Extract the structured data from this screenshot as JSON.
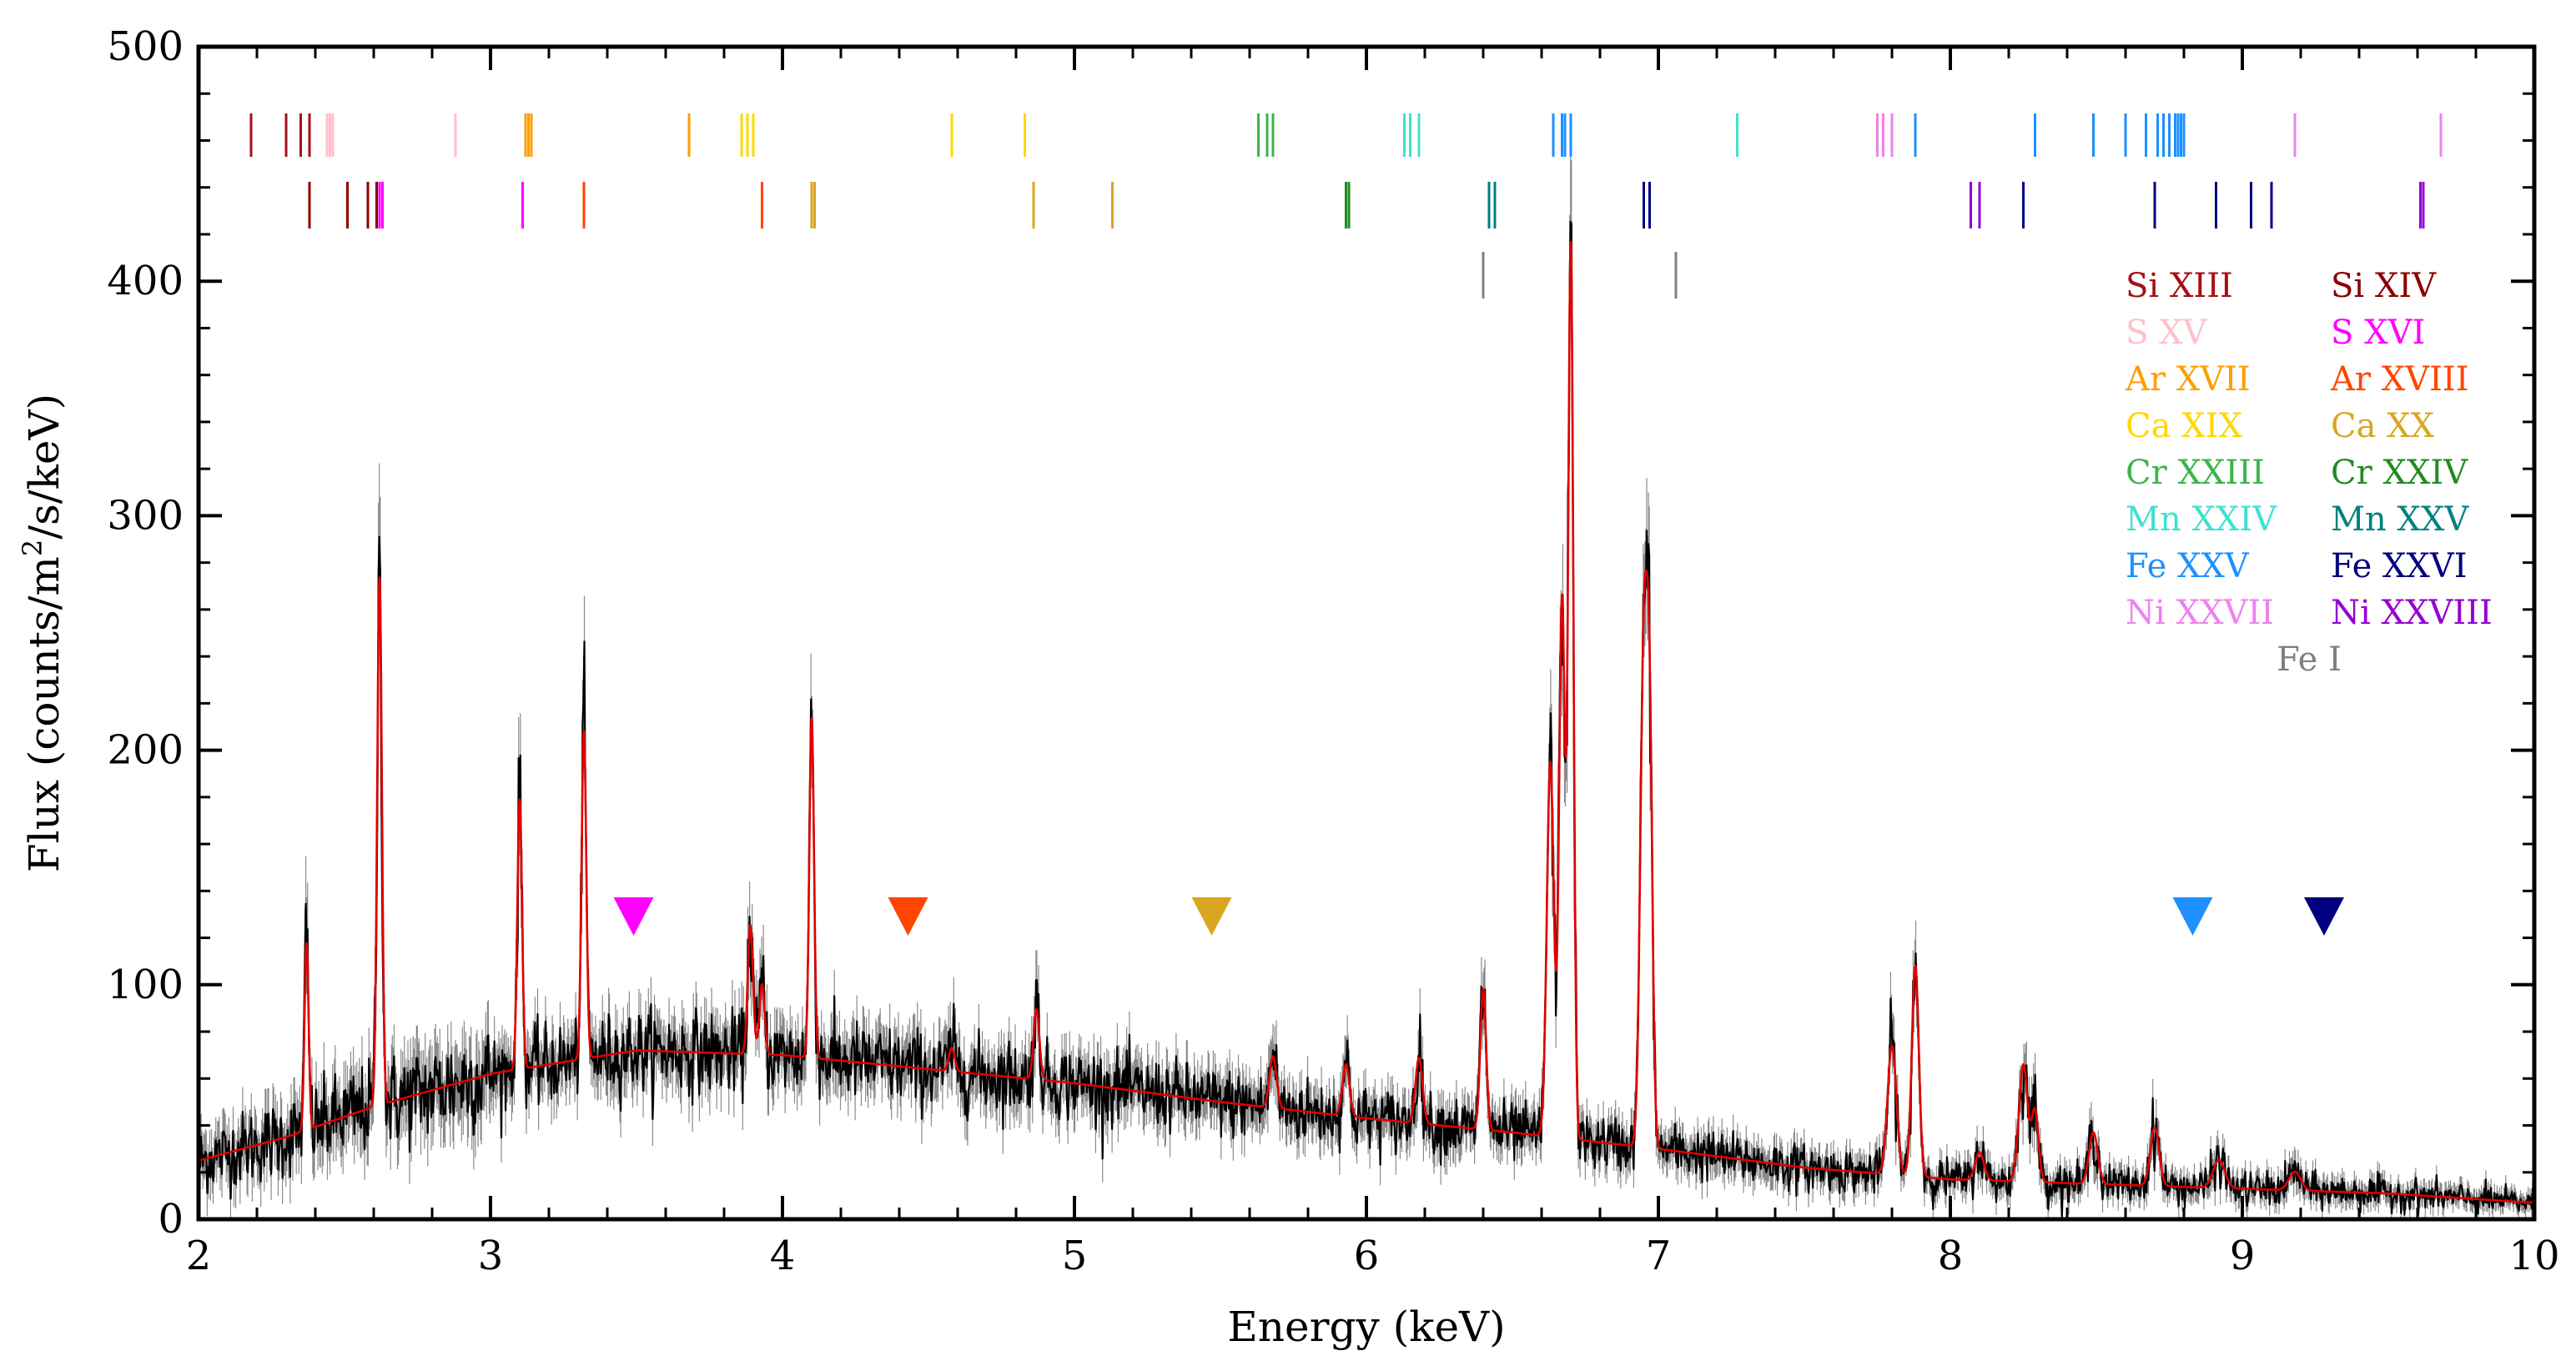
{
  "chart_data": {
    "type": "line",
    "title": "",
    "xlabel": "Energy (keV)",
    "ylabel_prefix": "Flux (counts/m",
    "ylabel_sup": "2",
    "ylabel_suffix": "/s/keV)",
    "xlim": [
      2,
      10
    ],
    "ylim": [
      0,
      500
    ],
    "xticks": [
      2,
      3,
      4,
      5,
      6,
      7,
      8,
      9,
      10
    ],
    "yticks": [
      0,
      100,
      200,
      300,
      400,
      500
    ],
    "grid": false,
    "continuum": {
      "x": [
        2.0,
        2.3,
        2.6,
        3.0,
        3.5,
        4.0,
        4.5,
        5.0,
        5.5,
        6.0,
        6.5,
        7.0,
        7.5,
        8.0,
        8.5,
        9.0,
        9.5,
        10.0
      ],
      "y": [
        25,
        35,
        48,
        62,
        72,
        70,
        64,
        58,
        50,
        43,
        37,
        30,
        22,
        17,
        15,
        13,
        11,
        7
      ]
    },
    "lines": [
      {
        "e": 2.37,
        "amp": 80,
        "w": 0.007
      },
      {
        "e": 2.62,
        "amp": 225,
        "w": 0.008
      },
      {
        "e": 3.1,
        "amp": 115,
        "w": 0.008
      },
      {
        "e": 3.32,
        "amp": 140,
        "w": 0.008
      },
      {
        "e": 3.89,
        "amp": 55,
        "w": 0.009
      },
      {
        "e": 3.93,
        "amp": 30,
        "w": 0.009
      },
      {
        "e": 4.1,
        "amp": 145,
        "w": 0.008
      },
      {
        "e": 4.58,
        "amp": 10,
        "w": 0.01
      },
      {
        "e": 4.87,
        "amp": 30,
        "w": 0.01
      },
      {
        "e": 5.68,
        "amp": 22,
        "w": 0.012
      },
      {
        "e": 5.93,
        "amp": 22,
        "w": 0.012
      },
      {
        "e": 6.18,
        "amp": 28,
        "w": 0.012
      },
      {
        "e": 6.4,
        "amp": 60,
        "w": 0.01
      },
      {
        "e": 6.63,
        "amp": 160,
        "w": 0.012
      },
      {
        "e": 6.67,
        "amp": 230,
        "w": 0.01
      },
      {
        "e": 6.7,
        "amp": 380,
        "w": 0.009
      },
      {
        "e": 6.95,
        "amp": 210,
        "w": 0.012
      },
      {
        "e": 6.97,
        "amp": 160,
        "w": 0.01
      },
      {
        "e": 7.8,
        "amp": 55,
        "w": 0.015
      },
      {
        "e": 7.88,
        "amp": 90,
        "w": 0.012
      },
      {
        "e": 8.1,
        "amp": 12,
        "w": 0.015
      },
      {
        "e": 8.25,
        "amp": 50,
        "w": 0.015
      },
      {
        "e": 8.29,
        "amp": 30,
        "w": 0.012
      },
      {
        "e": 8.49,
        "amp": 22,
        "w": 0.015
      },
      {
        "e": 8.7,
        "amp": 25,
        "w": 0.015
      },
      {
        "e": 8.92,
        "amp": 12,
        "w": 0.02
      },
      {
        "e": 9.18,
        "amp": 8,
        "w": 0.02
      }
    ],
    "tick_rows": [
      {
        "row": 1,
        "ticks": [
          {
            "e": 2.18,
            "c": "#a50f15"
          },
          {
            "e": 2.3,
            "c": "#a50f15"
          },
          {
            "e": 2.35,
            "c": "#a50f15"
          },
          {
            "e": 2.38,
            "c": "#a50f15"
          },
          {
            "e": 2.44,
            "c": "#ffc0cb"
          },
          {
            "e": 2.45,
            "c": "#ffc0cb"
          },
          {
            "e": 2.46,
            "c": "#ffc0cb"
          },
          {
            "e": 2.88,
            "c": "#ffc0cb"
          },
          {
            "e": 3.12,
            "c": "#ff9e00"
          },
          {
            "e": 3.13,
            "c": "#ff9e00"
          },
          {
            "e": 3.14,
            "c": "#ff9e00"
          },
          {
            "e": 3.68,
            "c": "#ff9e00"
          },
          {
            "e": 3.86,
            "c": "#ffd700"
          },
          {
            "e": 3.88,
            "c": "#ffd700"
          },
          {
            "e": 3.9,
            "c": "#ffd700"
          },
          {
            "e": 4.58,
            "c": "#ffd700"
          },
          {
            "e": 4.83,
            "c": "#ffd700"
          },
          {
            "e": 5.63,
            "c": "#3cb44b"
          },
          {
            "e": 5.66,
            "c": "#3cb44b"
          },
          {
            "e": 5.68,
            "c": "#3cb44b"
          },
          {
            "e": 6.13,
            "c": "#40e0d0"
          },
          {
            "e": 6.15,
            "c": "#40e0d0"
          },
          {
            "e": 6.18,
            "c": "#40e0d0"
          },
          {
            "e": 6.64,
            "c": "#1e90ff"
          },
          {
            "e": 6.67,
            "c": "#1e90ff"
          },
          {
            "e": 6.68,
            "c": "#1e90ff"
          },
          {
            "e": 6.7,
            "c": "#1e90ff"
          },
          {
            "e": 7.27,
            "c": "#40e0d0"
          },
          {
            "e": 7.75,
            "c": "#ee82ee"
          },
          {
            "e": 7.77,
            "c": "#ee82ee"
          },
          {
            "e": 7.8,
            "c": "#ee82ee"
          },
          {
            "e": 7.88,
            "c": "#1e90ff"
          },
          {
            "e": 8.29,
            "c": "#1e90ff"
          },
          {
            "e": 8.49,
            "c": "#1e90ff"
          },
          {
            "e": 8.6,
            "c": "#1e90ff"
          },
          {
            "e": 8.67,
            "c": "#1e90ff"
          },
          {
            "e": 8.71,
            "c": "#1e90ff"
          },
          {
            "e": 8.73,
            "c": "#1e90ff"
          },
          {
            "e": 8.75,
            "c": "#1e90ff"
          },
          {
            "e": 8.77,
            "c": "#1e90ff"
          },
          {
            "e": 8.78,
            "c": "#1e90ff"
          },
          {
            "e": 8.79,
            "c": "#1e90ff"
          },
          {
            "e": 8.8,
            "c": "#1e90ff"
          },
          {
            "e": 9.18,
            "c": "#ee82ee"
          },
          {
            "e": 9.68,
            "c": "#ee82ee"
          }
        ]
      },
      {
        "row": 2,
        "ticks": [
          {
            "e": 2.38,
            "c": "#8b0000"
          },
          {
            "e": 2.51,
            "c": "#8b0000"
          },
          {
            "e": 2.58,
            "c": "#8b0000"
          },
          {
            "e": 2.61,
            "c": "#8b0000"
          },
          {
            "e": 2.62,
            "c": "#ff00ff"
          },
          {
            "e": 2.63,
            "c": "#ff00ff"
          },
          {
            "e": 3.11,
            "c": "#ff00ff"
          },
          {
            "e": 3.32,
            "c": "#ff4500"
          },
          {
            "e": 3.93,
            "c": "#ff4500"
          },
          {
            "e": 4.1,
            "c": "#daa520"
          },
          {
            "e": 4.11,
            "c": "#daa520"
          },
          {
            "e": 4.86,
            "c": "#daa520"
          },
          {
            "e": 5.13,
            "c": "#daa520"
          },
          {
            "e": 5.93,
            "c": "#228b22"
          },
          {
            "e": 5.94,
            "c": "#228b22"
          },
          {
            "e": 6.42,
            "c": "#008080"
          },
          {
            "e": 6.44,
            "c": "#008080"
          },
          {
            "e": 6.95,
            "c": "#000080"
          },
          {
            "e": 6.97,
            "c": "#000080"
          },
          {
            "e": 8.07,
            "c": "#9400d3"
          },
          {
            "e": 8.1,
            "c": "#9400d3"
          },
          {
            "e": 8.25,
            "c": "#000080"
          },
          {
            "e": 8.7,
            "c": "#000080"
          },
          {
            "e": 8.91,
            "c": "#000080"
          },
          {
            "e": 9.03,
            "c": "#000080"
          },
          {
            "e": 9.1,
            "c": "#000080"
          },
          {
            "e": 9.61,
            "c": "#9400d3"
          },
          {
            "e": 9.62,
            "c": "#9400d3"
          }
        ]
      },
      {
        "row": 3,
        "ticks": [
          {
            "e": 6.4,
            "c": "#808080"
          },
          {
            "e": 7.06,
            "c": "#808080"
          }
        ]
      }
    ],
    "edges": [
      {
        "e": 3.49,
        "c": "#ff00ff"
      },
      {
        "e": 4.43,
        "c": "#ff4500"
      },
      {
        "e": 5.47,
        "c": "#daa520"
      },
      {
        "e": 8.83,
        "c": "#1e90ff"
      },
      {
        "e": 9.28,
        "c": "#000080"
      }
    ],
    "legend": {
      "placement": "top-right",
      "left": [
        {
          "label": "Si XIII",
          "c": "#a50f15"
        },
        {
          "label": "S XV",
          "c": "#ffc0cb"
        },
        {
          "label": "Ar XVII",
          "c": "#ff9e00"
        },
        {
          "label": "Ca XIX",
          "c": "#ffd700"
        },
        {
          "label": "Cr XXIII",
          "c": "#3cb44b"
        },
        {
          "label": "Mn XXIV",
          "c": "#40e0d0"
        },
        {
          "label": "Fe XXV",
          "c": "#1e90ff"
        },
        {
          "label": "Ni XXVII",
          "c": "#ee82ee"
        }
      ],
      "right": [
        {
          "label": "Si XIV",
          "c": "#8b0000"
        },
        {
          "label": "S XVI",
          "c": "#ff00ff"
        },
        {
          "label": "Ar XVIII",
          "c": "#ff4500"
        },
        {
          "label": "Ca XX",
          "c": "#daa520"
        },
        {
          "label": "Cr XXIV",
          "c": "#228b22"
        },
        {
          "label": "Mn XXV",
          "c": "#008080"
        },
        {
          "label": "Fe XXVI",
          "c": "#000080"
        },
        {
          "label": "Ni XXVIII",
          "c": "#9400d3"
        }
      ],
      "center": {
        "label": "Fe I",
        "c": "#808080"
      }
    },
    "colors": {
      "data": "#000000",
      "errorbar": "#8a8a8a",
      "model": "#e00000",
      "axes": "#000000"
    }
  }
}
